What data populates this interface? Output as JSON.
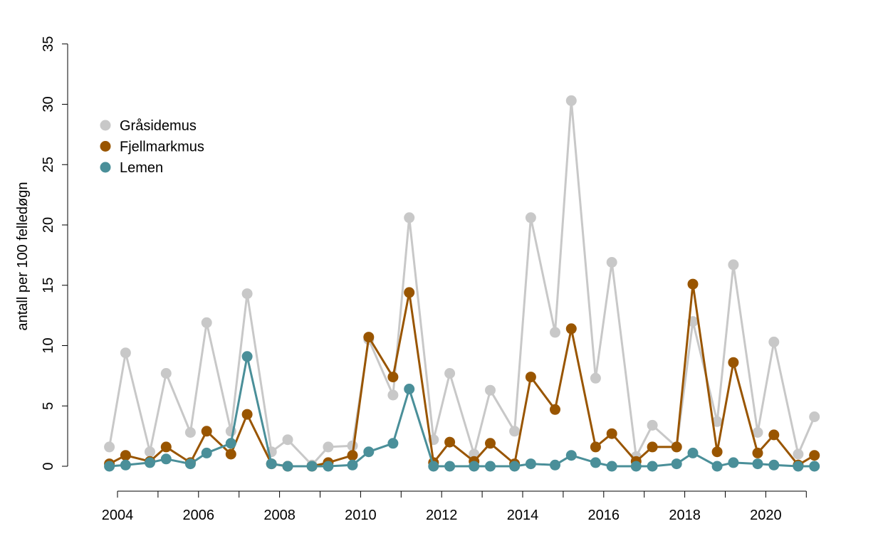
{
  "chart_data": {
    "type": "line",
    "ylabel": "antall per 100 felledøgn",
    "ylim": [
      0,
      35
    ],
    "yticks": [
      0,
      5,
      10,
      15,
      20,
      25,
      30,
      35
    ],
    "xlim": [
      2003.75,
      2021.2
    ],
    "xticks": [
      2004,
      2005,
      2006,
      2007,
      2008,
      2009,
      2010,
      2011,
      2012,
      2013,
      2014,
      2015,
      2016,
      2017,
      2018,
      2019,
      2020,
      2021
    ],
    "xtick_labels": [
      2004,
      2006,
      2008,
      2010,
      2012,
      2014,
      2016,
      2018,
      2020
    ],
    "legend_position": "top-left",
    "x": [
      2003.8,
      2004.2,
      2004.8,
      2005.2,
      2005.8,
      2006.2,
      2006.8,
      2007.2,
      2007.8,
      2008.2,
      2008.8,
      2009.2,
      2009.8,
      2010.2,
      2010.8,
      2011.2,
      2011.8,
      2012.2,
      2012.8,
      2013.2,
      2013.8,
      2014.2,
      2014.8,
      2015.2,
      2015.8,
      2016.2,
      2016.8,
      2017.2,
      2017.8,
      2018.2,
      2018.8,
      2019.2,
      2019.8,
      2020.2,
      2020.8,
      2021.2
    ],
    "series": [
      {
        "name": "Gråsidemus",
        "color": "#c8c8c8",
        "values": [
          1.6,
          9.4,
          1.2,
          7.7,
          2.8,
          11.9,
          2.9,
          14.3,
          1.2,
          2.2,
          0.1,
          1.6,
          1.7,
          10.5,
          5.9,
          20.6,
          2.2,
          7.7,
          1.0,
          6.3,
          2.9,
          20.6,
          11.1,
          30.3,
          7.3,
          16.9,
          0.8,
          3.4,
          1.6,
          12.0,
          3.7,
          16.7,
          2.8,
          10.3,
          1.0,
          4.1
        ]
      },
      {
        "name": "Fjellmarkmus",
        "color": "#995500",
        "values": [
          0.2,
          0.9,
          0.4,
          1.6,
          0.3,
          2.9,
          1.0,
          4.3,
          0.2,
          0.0,
          0.0,
          0.3,
          0.9,
          10.7,
          7.4,
          14.4,
          0.3,
          2.0,
          0.4,
          1.9,
          0.2,
          7.4,
          4.7,
          11.4,
          1.6,
          2.7,
          0.4,
          1.6,
          1.6,
          15.1,
          1.2,
          8.6,
          1.1,
          2.6,
          0.1,
          0.9
        ]
      },
      {
        "name": "Lemen",
        "color": "#4a8f99",
        "values": [
          0.0,
          0.1,
          0.3,
          0.6,
          0.2,
          1.1,
          1.9,
          9.1,
          0.2,
          0.0,
          0.0,
          0.0,
          0.1,
          1.2,
          1.9,
          6.4,
          0.0,
          0.0,
          0.0,
          0.0,
          0.0,
          0.2,
          0.1,
          0.9,
          0.3,
          0.0,
          0.0,
          0.0,
          0.2,
          1.1,
          0.0,
          0.3,
          0.2,
          0.1,
          0.0,
          0.0
        ]
      }
    ]
  }
}
